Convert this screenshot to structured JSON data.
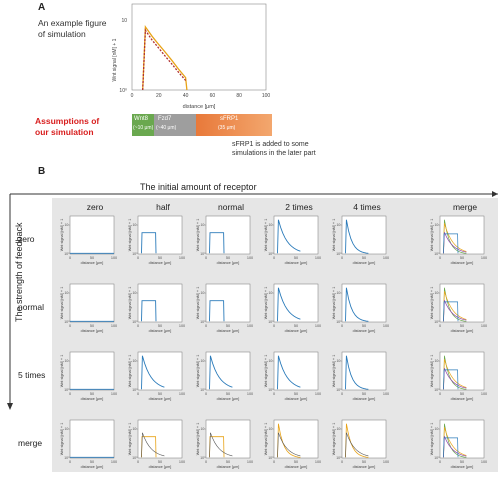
{
  "panel_a": {
    "letter": "A",
    "example_label": "An example figure of simulation",
    "assumption_label": "Assumptions of our simulation",
    "bar_segments": [
      {
        "name": "Wnt8",
        "range": "(~10 μm)",
        "color": "#6aa84f"
      },
      {
        "name": "Fzd7",
        "range": "(~40 μm)",
        "color": "#9e9e9e"
      },
      {
        "name": "sFRP1",
        "range": "(35 μm)",
        "color": "#e8793a"
      }
    ],
    "note": "sFRP1 is added to some simulations in the later part",
    "colors": {
      "bar_end": "#f3a76e"
    }
  },
  "panel_b": {
    "letter": "B",
    "x_title": "The initial amount of receptor",
    "y_title": "The strength of feedback",
    "columns": [
      "zero",
      "half",
      "normal",
      "2 times",
      "4 times",
      "merge"
    ],
    "rows": [
      "zero",
      "normal",
      "5 times",
      "merge"
    ],
    "colors": {
      "grid_bg": "#e6e6e6",
      "blue": "#2b7bba",
      "orange": "#e8a317"
    }
  },
  "chart_data": [
    {
      "type": "line",
      "title": "",
      "xlabel": "distance [μm]",
      "ylabel": "Wnt signal [nM] + 1",
      "xlim": [
        0,
        100
      ],
      "ylog": true,
      "x_ticks": [
        "0",
        "20",
        "40",
        "60",
        "80",
        "100"
      ],
      "y_ticks": [
        "10⁰",
        "10"
      ],
      "series": [
        {
          "color": "#e8a317",
          "x": [
            8,
            10,
            15,
            20,
            25,
            30,
            35,
            40,
            41
          ],
          "y": [
            1.0,
            15,
            10,
            7,
            5,
            3.5,
            2.4,
            1.7,
            1.0
          ]
        },
        {
          "color": "#b03030",
          "x": [
            8,
            10,
            15,
            20,
            25,
            30,
            35,
            40
          ],
          "y": [
            1.0,
            13,
            8.5,
            6,
            4.2,
            3,
            2.1,
            1.5
          ]
        }
      ]
    },
    {
      "type": "line",
      "grid": "6 columns x 4 rows of small panels",
      "xlabel": "distance [μm]",
      "ylabel": "Wnt signal [nM] + 1",
      "xlim": [
        0,
        100
      ],
      "ylog": true,
      "x_ticks": [
        "0",
        "50",
        "100"
      ],
      "y_ticks": [
        "10⁰",
        "10¹"
      ],
      "profiles_note": "Blue = signal profile in each condition; orange = merged comparison"
    }
  ]
}
